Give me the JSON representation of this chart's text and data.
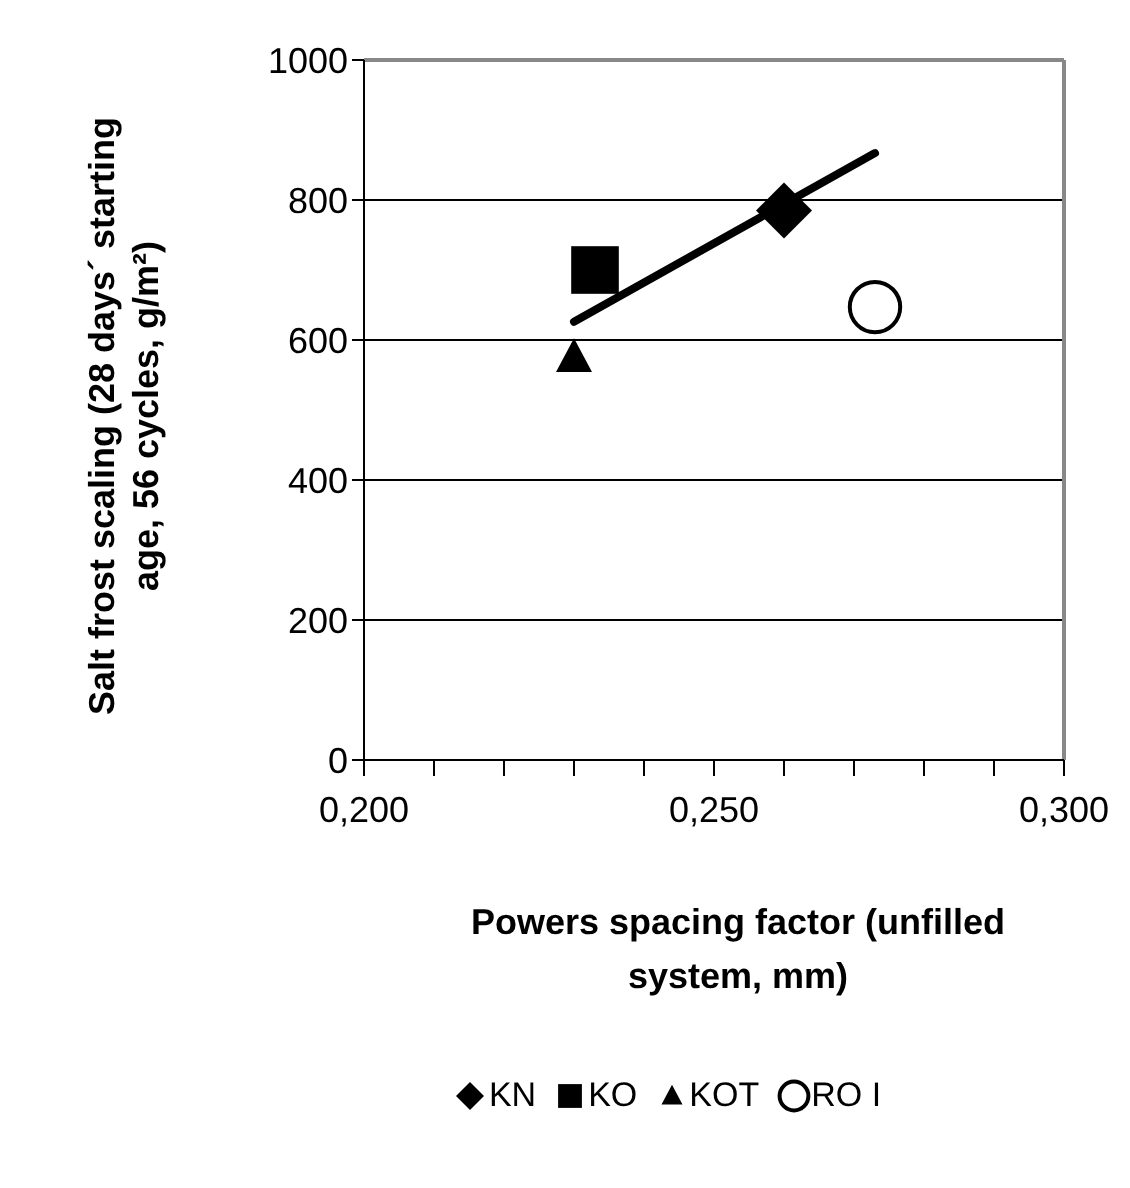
{
  "chart_data": {
    "type": "scatter",
    "xlabel": "Powers spacing factor (unfilled system, mm)",
    "ylabel": "Salt frost scaling (28 days´ starting age, 56 cycles, g/m²)",
    "xlim": [
      0.2,
      0.3
    ],
    "xticks": [
      {
        "value": 0.2,
        "label": "0,200"
      },
      {
        "value": 0.21,
        "label": null
      },
      {
        "value": 0.22,
        "label": null
      },
      {
        "value": 0.23,
        "label": null
      },
      {
        "value": 0.24,
        "label": null
      },
      {
        "value": 0.25,
        "label": "0,250"
      },
      {
        "value": 0.26,
        "label": null
      },
      {
        "value": 0.27,
        "label": null
      },
      {
        "value": 0.28,
        "label": null
      },
      {
        "value": 0.29,
        "label": null
      },
      {
        "value": 0.3,
        "label": "0,300"
      }
    ],
    "ylim": [
      0,
      1000
    ],
    "yticks": [
      0,
      200,
      400,
      600,
      800,
      1000
    ],
    "grid": "y",
    "legend": "bottom",
    "series": [
      {
        "name": "KN",
        "color": "#000000",
        "marker": "diamond",
        "x": [
          0.26
        ],
        "values": [
          785
        ]
      },
      {
        "name": "KO",
        "color": "#000000",
        "marker": "square",
        "x": [
          0.233
        ],
        "values": [
          700
        ]
      },
      {
        "name": "KOT",
        "color": "#000000",
        "marker": "triangle",
        "x": [
          0.23
        ],
        "values": [
          575
        ]
      },
      {
        "name": "RO I",
        "color": "#000000",
        "marker": "circle",
        "x": [
          0.273
        ],
        "values": [
          647
        ]
      },
      {
        "type": "line",
        "color": "#000000",
        "marker": "none",
        "x": [
          0.23,
          0.273
        ],
        "values": [
          626,
          867
        ]
      }
    ]
  }
}
